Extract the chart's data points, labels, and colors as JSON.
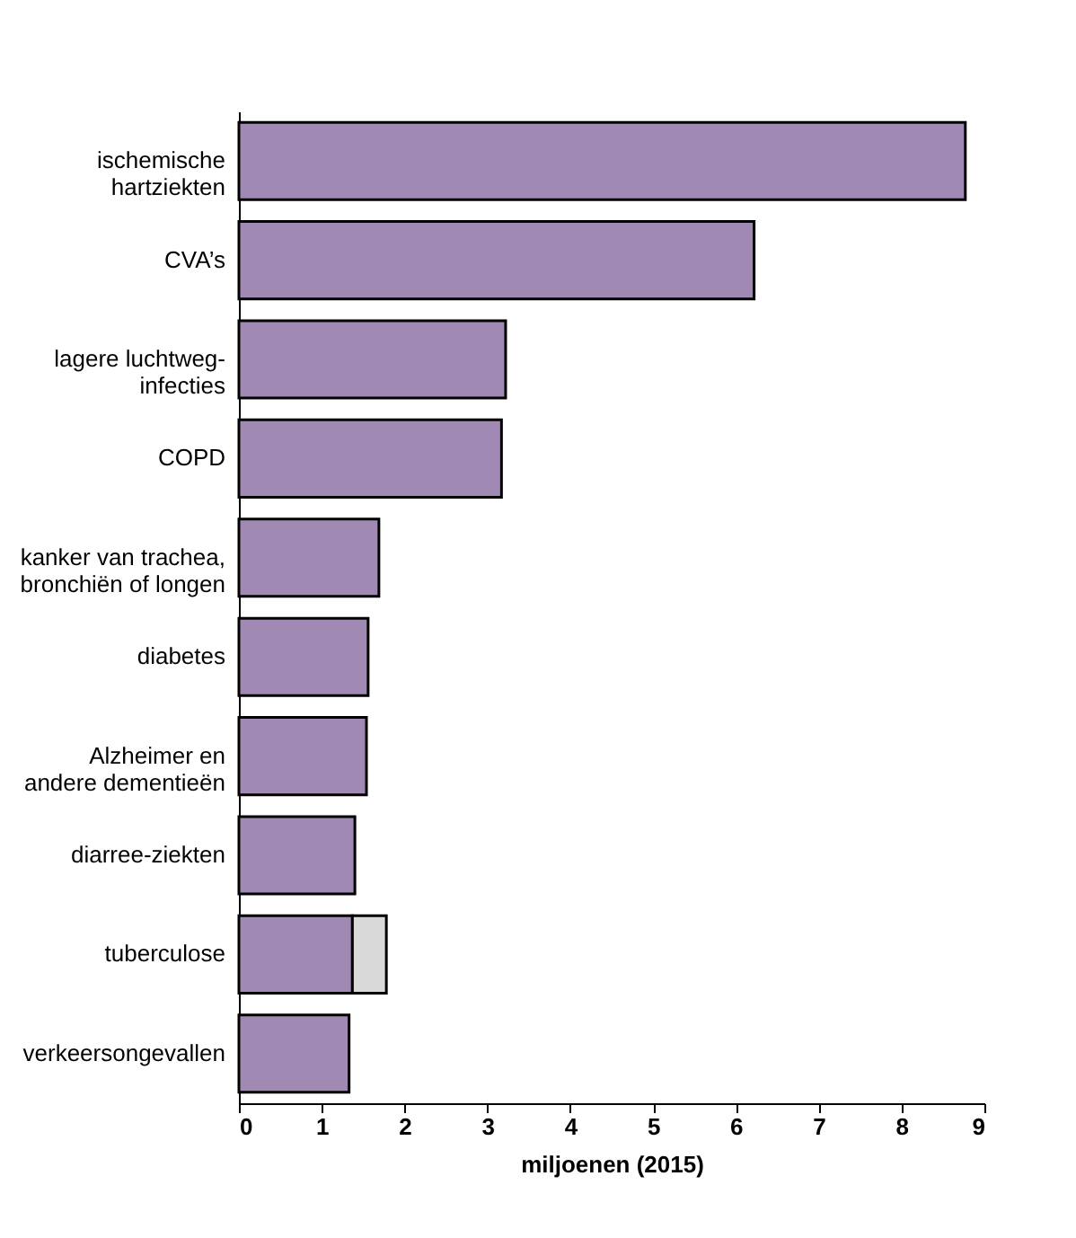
{
  "chart_data": {
    "type": "bar",
    "orientation": "horizontal",
    "stacked": true,
    "categories": [
      "ischemische\nhartziekten",
      "CVA’s",
      "lagere luchtweg-\ninfecties",
      "COPD",
      "kanker van trachea,\nbronchiën of longen",
      "diabetes",
      "Alzheimer en\nandere dementieën",
      "diarree-ziekten",
      "tuberculose",
      "verkeersongevallen"
    ],
    "series": [
      {
        "color": "#a08ab4",
        "values": [
          8.77,
          6.22,
          3.22,
          3.17,
          1.69,
          1.56,
          1.54,
          1.4,
          1.37,
          1.33
        ]
      },
      {
        "color": "#d9d9d9",
        "values": [
          null,
          null,
          null,
          null,
          null,
          null,
          null,
          null,
          0.41,
          null
        ]
      }
    ],
    "xlim": [
      0,
      9
    ],
    "xticks": [
      0,
      1,
      2,
      3,
      4,
      5,
      6,
      7,
      8,
      9
    ],
    "xlabel": "miljoenen (2015)",
    "grid": false
  }
}
